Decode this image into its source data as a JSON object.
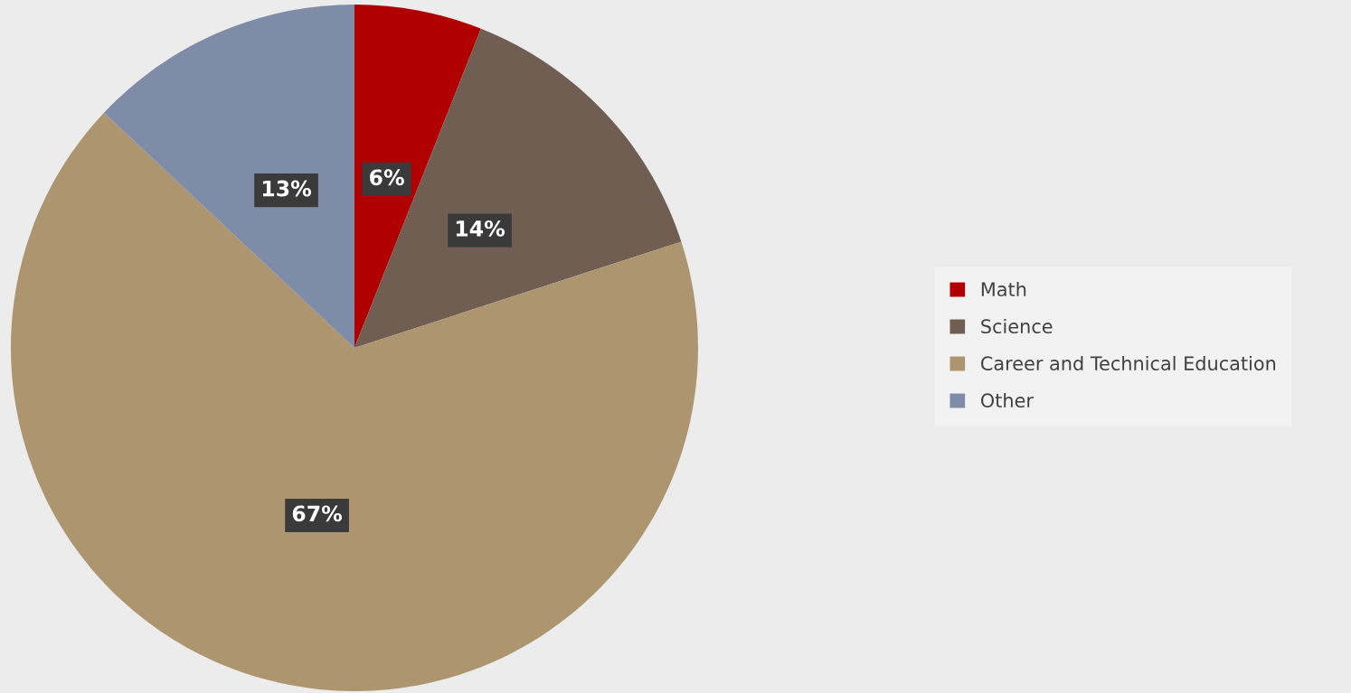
{
  "chart_data": {
    "type": "pie",
    "categories": [
      "Math",
      "Science",
      "Career and Technical Education",
      "Other"
    ],
    "values": [
      6,
      14,
      67,
      13
    ],
    "value_labels": [
      "6%",
      "14%",
      "67%",
      "13%"
    ],
    "colors": [
      "#b00000",
      "#705e52",
      "#ad9570",
      "#7f8ca8"
    ],
    "legend": "right"
  }
}
